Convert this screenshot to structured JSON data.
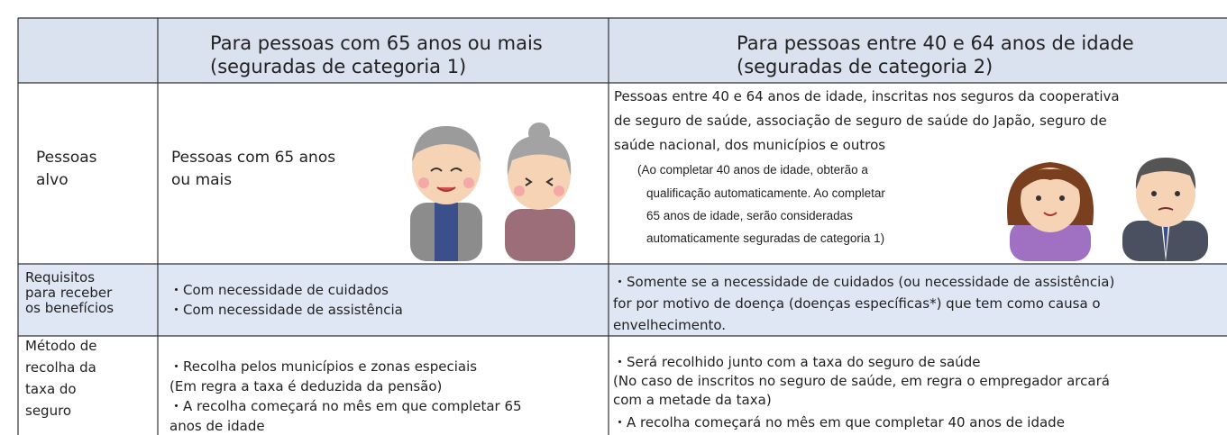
{
  "table": {
    "header": {
      "col1": [
        "Para pessoas com 65 anos ou mais",
        "(seguradas de categoria 1)"
      ],
      "col2": [
        "Para pessoas entre 40 e 64 anos de idade",
        "(seguradas de categoria 2)"
      ]
    },
    "rows": [
      {
        "label": [
          "Pessoas",
          "alvo"
        ],
        "col1": [
          "Pessoas com 65 anos",
          "ou mais"
        ],
        "col2": [
          "Pessoas entre 40 e 64 anos de idade, inscritas nos seguros da cooperativa",
          "de seguro de saúde, associação de seguro de saúde do Japão, seguro de",
          "saúde nacional, dos municípios e outros"
        ],
        "col2_note": [
          "(Ao completar 40 anos de idade, obterão a",
          "qualificação automaticamente. Ao completar",
          "65 anos de idade, serão consideradas",
          "automaticamente seguradas de categoria 1)"
        ]
      },
      {
        "label": [
          "Requisitos",
          "para receber",
          "os benefícios"
        ],
        "col1": [
          "・Com necessidade de cuidados",
          "・Com necessidade de assistência"
        ],
        "col2": [
          "・Somente se a necessidade de cuidados (ou necessidade de assistência)",
          "for por motivo de doença (doenças específicas*) que tem como causa o",
          "envelhecimento."
        ]
      },
      {
        "label": [
          "Método de",
          "recolha da",
          "taxa do",
          "seguro"
        ],
        "col1": [
          "・Recolha pelos municípios e zonas especiais",
          " (Em regra a taxa é deduzida da pensão)",
          "・A recolha começará no mês em que completar 65",
          "anos de idade"
        ],
        "col2": [
          "・Será recolhido junto com a taxa do seguro de saúde",
          " (No caso de inscritos no seguro de saúde, em regra o empregador arcará",
          " com a metade da taxa)",
          "・A recolha começará no mês em que completar 40 anos de idade"
        ]
      }
    ]
  }
}
